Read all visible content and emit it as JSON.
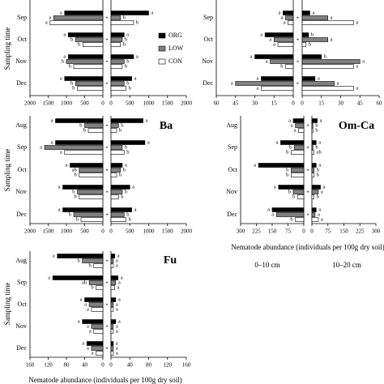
{
  "ylabel": "Sampling time",
  "xlabel": "Nematode abundance (individuals per 100g dry soil)",
  "depth_labels": [
    "0–10 cm",
    "10–20 cm"
  ],
  "chart_data": [
    {
      "type": "bar",
      "categories": [
        "Sep",
        "Oct",
        "Nov",
        "Dec"
      ],
      "xlim": [
        0,
        2000
      ],
      "xticks": [
        0,
        500,
        1000,
        1500,
        2000
      ],
      "stars": [
        "*",
        "*",
        "*",
        "*"
      ],
      "left": {
        "series": [
          {
            "name": "ORG",
            "color": "#000000",
            "values": [
              1050,
              950,
              950,
              1050
            ],
            "letters": [
              "a",
              "a",
              "a",
              "a"
            ]
          },
          {
            "name": "LOW",
            "color": "#808080",
            "values": [
              1350,
              750,
              1000,
              750
            ],
            "letters": [
              "a",
              "b",
              "b",
              "b"
            ]
          },
          {
            "name": "CON",
            "color": "#ffffff",
            "values": [
              1450,
              550,
              800,
              700
            ],
            "letters": [
              "a",
              "b",
              "b",
              "b"
            ]
          }
        ]
      },
      "right": {
        "series": [
          {
            "color": "#000000",
            "values": [
              1000,
              350,
              600,
              550
            ],
            "letters": [
              "a",
              "a",
              "a",
              "a"
            ]
          },
          {
            "color": "#808080",
            "values": [
              250,
              300,
              350,
              350
            ],
            "letters": [
              "b",
              "b",
              "b",
              "b"
            ]
          },
          {
            "color": "#ffffff",
            "values": [
              600,
              250,
              300,
              400
            ],
            "letters": [
              "b",
              "b",
              "b",
              "b"
            ]
          }
        ]
      }
    },
    {
      "type": "bar",
      "categories": [
        "Sep",
        "Oct",
        "Nov",
        "Dec"
      ],
      "xlim": [
        0,
        60
      ],
      "xticks": [
        0,
        15,
        30,
        45,
        60
      ],
      "stars": [
        "*",
        "*",
        "*",
        "*"
      ],
      "left": {
        "series": [
          {
            "color": "#000000",
            "values": [
              8,
              22,
              30,
              25
            ],
            "letters": [
              "a",
              "a",
              "a",
              "a"
            ]
          },
          {
            "color": "#808080",
            "values": [
              6,
              15,
              18,
              45
            ],
            "letters": [
              "a",
              "a",
              "a",
              "a"
            ]
          },
          {
            "color": "#ffffff",
            "values": [
              4,
              12,
              6,
              25
            ],
            "letters": [
              "a",
              "a",
              "b",
              "a"
            ]
          }
        ]
      },
      "right": {
        "series": [
          {
            "color": "#000000",
            "values": [
              6,
              5,
              15,
              10
            ],
            "letters": [
              "a",
              "b",
              "b",
              "a"
            ]
          },
          {
            "color": "#808080",
            "values": [
              20,
              20,
              45,
              25
            ],
            "letters": [
              "a",
              "a",
              "a",
              "a"
            ]
          },
          {
            "color": "#ffffff",
            "values": [
              40,
              3,
              40,
              40
            ],
            "letters": [
              "a",
              "b",
              "a",
              "a"
            ]
          }
        ]
      }
    },
    {
      "type": "bar",
      "title": "Ba",
      "categories": [
        "Aug",
        "Sep",
        "Oct",
        "Nov",
        "Dec"
      ],
      "xlim": [
        0,
        2000
      ],
      "xticks": [
        0,
        500,
        1000,
        1500,
        2000
      ],
      "stars": [
        "*",
        "*",
        "*",
        "*",
        "*"
      ],
      "left": {
        "series": [
          {
            "color": "#000000",
            "values": [
              1300,
              1300,
              900,
              1100,
              1100
            ],
            "letters": [
              "a",
              "a",
              "a",
              "a",
              "a"
            ]
          },
          {
            "color": "#808080",
            "values": [
              500,
              1600,
              650,
              700,
              800
            ],
            "letters": [
              "b",
              "a",
              "ab",
              "b",
              "b"
            ]
          },
          {
            "color": "#ffffff",
            "values": [
              400,
              1050,
              650,
              650,
              600
            ],
            "letters": [
              "b",
              "a",
              "b",
              "b",
              "b"
            ]
          }
        ]
      },
      "right": {
        "series": [
          {
            "color": "#000000",
            "values": [
              850,
              900,
              300,
              500,
              550
            ],
            "letters": [
              "a",
              "a",
              "a",
              "a",
              "a"
            ]
          },
          {
            "color": "#808080",
            "values": [
              200,
              300,
              250,
              300,
              350
            ],
            "letters": [
              "b",
              "b",
              "b",
              "b",
              "b"
            ]
          },
          {
            "color": "#ffffff",
            "values": [
              150,
              350,
              150,
              200,
              400
            ],
            "letters": [
              "b",
              "b",
              "b",
              "b",
              "b"
            ]
          }
        ]
      }
    },
    {
      "type": "bar",
      "title": "Om-Ca",
      "categories": [
        "Aug",
        "Sep",
        "Oct",
        "Nov",
        "Dec"
      ],
      "xlim": [
        0,
        300
      ],
      "xticks": [
        0,
        75,
        150,
        225,
        300
      ],
      "stars": [
        "*",
        "*",
        "*",
        "*",
        "*"
      ],
      "left": {
        "series": [
          {
            "color": "#000000",
            "values": [
              50,
              110,
              215,
              120,
              150
            ],
            "letters": [
              "a",
              "a",
              "a",
              "a",
              "a"
            ]
          },
          {
            "color": "#808080",
            "values": [
              40,
              45,
              60,
              50,
              130
            ],
            "letters": [
              "a",
              "b",
              "b",
              "b",
              "a"
            ]
          },
          {
            "color": "#ffffff",
            "values": [
              25,
              60,
              60,
              30,
              40
            ],
            "letters": [
              "a",
              "b",
              "b",
              "b",
              "b"
            ]
          }
        ]
      },
      "right": {
        "series": [
          {
            "color": "#000000",
            "values": [
              25,
              20,
              20,
              40,
              20
            ],
            "letters": [
              "a",
              "a",
              "a",
              "a",
              "a"
            ]
          },
          {
            "color": "#808080",
            "values": [
              5,
              5,
              10,
              30,
              15
            ],
            "letters": [
              "b",
              "b",
              "b",
              "a",
              "a"
            ]
          },
          {
            "color": "#ffffff",
            "values": [
              5,
              10,
              10,
              10,
              30
            ],
            "letters": [
              "b",
              "ab",
              "b",
              "b",
              "a"
            ]
          }
        ]
      }
    },
    {
      "type": "bar",
      "title": "Fu",
      "categories": [
        "Aug",
        "Sep",
        "Oct",
        "Nov",
        "Dec"
      ],
      "xlim": [
        0,
        160
      ],
      "xticks": [
        0,
        40,
        80,
        120,
        160
      ],
      "stars": [
        "*",
        "*",
        "*",
        "*",
        "*"
      ],
      "left": {
        "series": [
          {
            "color": "#000000",
            "values": [
              100,
              110,
              40,
              45,
              35
            ],
            "letters": [
              "a",
              "a",
              "a",
              "a",
              "a"
            ]
          },
          {
            "color": "#808080",
            "values": [
              45,
              30,
              30,
              25,
              25
            ],
            "letters": [
              "b",
              "ab",
              "a",
              "a",
              "a"
            ]
          },
          {
            "color": "#ffffff",
            "values": [
              20,
              15,
              25,
              20,
              15
            ],
            "letters": [
              "b",
              "b",
              "a",
              "a",
              "a"
            ]
          }
        ]
      },
      "right": {
        "series": [
          {
            "color": "#000000",
            "values": [
              8,
              15,
              10,
              10,
              5
            ],
            "letters": [
              "a",
              "a",
              "a",
              "a",
              "a"
            ]
          },
          {
            "color": "#808080",
            "values": [
              5,
              10,
              5,
              5,
              5
            ],
            "letters": [
              "a",
              "a",
              "a",
              "a",
              "a"
            ]
          },
          {
            "color": "#ffffff",
            "values": [
              5,
              8,
              5,
              5,
              5
            ],
            "letters": [
              "a",
              "a",
              "a",
              "a",
              "a"
            ]
          }
        ]
      }
    }
  ]
}
